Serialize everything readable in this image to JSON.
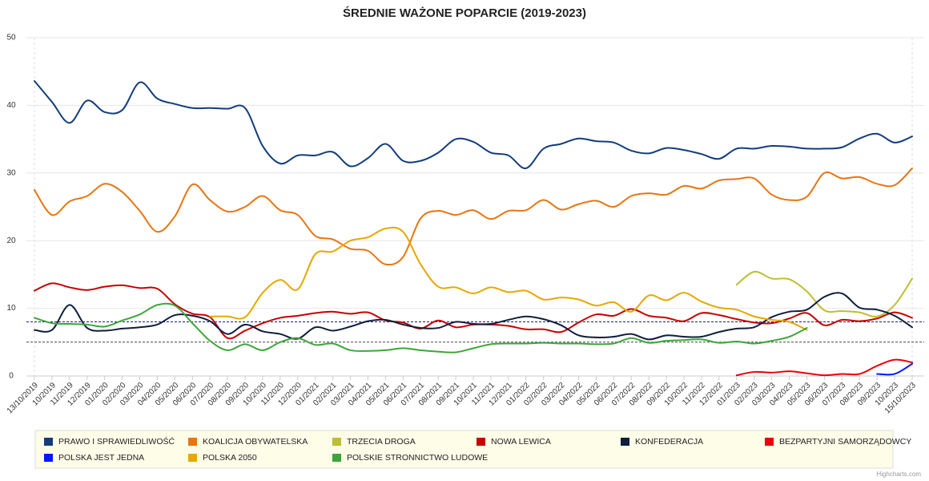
{
  "chart_data": {
    "type": "line",
    "title": "ŚREDNIE WAŻONE POPARCIE (2019-2023)",
    "credit": "Highcharts.com",
    "categories": [
      "13/10/2019",
      "10/2019",
      "11/2019",
      "12/2019",
      "01/2020",
      "02/2020",
      "03/2020",
      "04/2020",
      "05/2020",
      "06/2020",
      "07/2020",
      "08/2020",
      "09/2020",
      "10/2020",
      "11/2020",
      "12/2020",
      "01/2021",
      "02/2021",
      "03/2021",
      "04/2021",
      "05/2021",
      "06/2021",
      "07/2021",
      "08/2021",
      "09/2021",
      "10/2021",
      "11/2021",
      "12/2021",
      "01/2022",
      "02/2022",
      "03/2022",
      "04/2022",
      "05/2022",
      "06/2022",
      "07/2022",
      "08/2022",
      "09/2022",
      "10/2022",
      "11/2022",
      "12/2022",
      "01/2023",
      "02/2023",
      "03/2023",
      "04/2023",
      "05/2023",
      "06/2023",
      "07/2023",
      "08/2023",
      "09/2023",
      "10/2023",
      "15/10/2023"
    ],
    "ylim": [
      0,
      50
    ],
    "yticks": [
      0,
      10,
      20,
      30,
      40,
      50
    ],
    "grid": true,
    "threshold_lines": [
      {
        "value": 8,
        "color": "#1a1a80"
      },
      {
        "value": 5,
        "color": "#444444"
      }
    ],
    "series": [
      {
        "name": "PRAWO I SPRAWIEDLIWOŚĆ",
        "color": "#123d7a",
        "values": [
          43.6,
          40.5,
          37.4,
          40.7,
          39,
          39.3,
          43.4,
          41,
          40.2,
          39.6,
          39.6,
          39.5,
          39.6,
          34,
          31.4,
          32.6,
          32.6,
          33.1,
          31,
          32.2,
          34.3,
          31.8,
          31.8,
          33,
          35,
          34.6,
          33,
          32.6,
          30.7,
          33.6,
          34.3,
          35.1,
          34.7,
          34.5,
          33.3,
          32.9,
          33.7,
          33.4,
          32.8,
          32.1,
          33.6,
          33.6,
          34,
          33.9,
          33.6,
          33.6,
          33.8,
          35.1,
          35.8,
          34.5,
          35.4
        ]
      },
      {
        "name": "KOALICJA OBYWATELSKA",
        "color": "#e87511",
        "values": [
          27.5,
          23.8,
          25.8,
          26.6,
          28.4,
          27.2,
          24.4,
          21.3,
          23.6,
          28.3,
          26,
          24.3,
          25,
          26.6,
          24.5,
          23.8,
          20.7,
          20.2,
          18.8,
          18.5,
          16.5,
          17.6,
          23.3,
          24.4,
          23.8,
          24.5,
          23.2,
          24.4,
          24.5,
          26,
          24.6,
          25.4,
          25.9,
          25,
          26.6,
          27,
          26.8,
          28.1,
          27.7,
          28.9,
          29.1,
          29.2,
          26.8,
          26,
          26.5,
          30,
          29.2,
          29.4,
          28.4,
          28.2,
          30.7
        ]
      },
      {
        "name": "TRZECIA DROGA",
        "color": "#bdbe33",
        "values": [
          null,
          null,
          null,
          null,
          null,
          null,
          null,
          null,
          null,
          null,
          null,
          null,
          null,
          null,
          null,
          null,
          null,
          null,
          null,
          null,
          null,
          null,
          null,
          null,
          null,
          null,
          null,
          null,
          null,
          null,
          null,
          null,
          null,
          null,
          null,
          null,
          null,
          null,
          null,
          null,
          13.5,
          15.4,
          14.4,
          14.3,
          12.5,
          9.7,
          9.6,
          9.4,
          8.8,
          10.5,
          14.4
        ]
      },
      {
        "name": "NOWA LEWICA",
        "color": "#c80000",
        "values": [
          12.6,
          13.7,
          13.1,
          12.7,
          13.2,
          13.4,
          13,
          12.9,
          10.6,
          9.2,
          8.7,
          5.6,
          6.7,
          7.8,
          8.6,
          8.9,
          9.3,
          9.5,
          9.2,
          9.4,
          8.2,
          7.9,
          7,
          8.2,
          7.2,
          7.6,
          7.6,
          7.4,
          6.9,
          6.9,
          6.5,
          7.9,
          9.1,
          8.9,
          9.9,
          8.9,
          8.6,
          8.1,
          9.3,
          9,
          8.4,
          7.9,
          7.8,
          8.5,
          9.3,
          7.5,
          8.3,
          8.1,
          8.5,
          9.4,
          8.6
        ]
      },
      {
        "name": "KONFEDERACJA",
        "color": "#0f1e3c",
        "values": [
          6.8,
          6.8,
          10.5,
          7.1,
          6.7,
          7,
          7.2,
          7.6,
          9,
          8.9,
          8.1,
          6.2,
          7.6,
          6.6,
          6.2,
          5.5,
          7.2,
          6.7,
          7.3,
          8.1,
          8.3,
          7.6,
          7.1,
          7.1,
          8,
          7.7,
          7.7,
          8.3,
          8.8,
          8.4,
          7.5,
          6,
          5.7,
          5.8,
          6.2,
          5.4,
          6,
          5.8,
          5.8,
          6.5,
          7,
          7.2,
          8.7,
          9.5,
          9.8,
          11.7,
          12.2,
          10.1,
          9.8,
          8.9,
          7.2
        ]
      },
      {
        "name": "BEZPARTYJNI SAMORZĄDOWCY",
        "color": "#e8000b",
        "values": [
          null,
          null,
          null,
          null,
          null,
          null,
          null,
          null,
          null,
          null,
          null,
          null,
          null,
          null,
          null,
          null,
          null,
          null,
          null,
          null,
          null,
          null,
          null,
          null,
          null,
          null,
          null,
          null,
          null,
          null,
          null,
          null,
          null,
          null,
          null,
          null,
          null,
          null,
          null,
          null,
          0.1,
          0.6,
          0.5,
          0.7,
          0.4,
          0.1,
          0.3,
          0.3,
          1.5,
          2.4,
          2
        ]
      },
      {
        "name": "POLSKA JEST JEDNA",
        "color": "#0018ff",
        "values": [
          null,
          null,
          null,
          null,
          null,
          null,
          null,
          null,
          null,
          null,
          null,
          null,
          null,
          null,
          null,
          null,
          null,
          null,
          null,
          null,
          null,
          null,
          null,
          null,
          null,
          null,
          null,
          null,
          null,
          null,
          null,
          null,
          null,
          null,
          null,
          null,
          null,
          null,
          null,
          null,
          null,
          null,
          null,
          null,
          null,
          null,
          null,
          null,
          0.3,
          0.3,
          1.8
        ]
      },
      {
        "name": "POLSKA 2050",
        "color": "#e6a800",
        "values": [
          null,
          null,
          null,
          null,
          null,
          null,
          null,
          null,
          null,
          null,
          8.8,
          8.8,
          8.7,
          12.3,
          14.2,
          12.8,
          18,
          18.4,
          20,
          20.5,
          21.8,
          21.3,
          16.5,
          13.2,
          13.1,
          12.2,
          13.1,
          12.4,
          12.6,
          11.3,
          11.6,
          11.3,
          10.4,
          10.9,
          9.5,
          11.9,
          11.2,
          12.3,
          11,
          10.1,
          9.8,
          8.8,
          8.3,
          8,
          6.8,
          null,
          null,
          null,
          null,
          null,
          null
        ]
      },
      {
        "name": "POLSKIE STRONNICTWO LUDOWE",
        "color": "#3ea53a",
        "values": [
          8.6,
          7.8,
          7.7,
          7.6,
          7.3,
          8.2,
          9.1,
          10.5,
          10.4,
          7.8,
          5.2,
          3.8,
          4.7,
          3.8,
          5,
          5.6,
          4.6,
          4.8,
          3.8,
          3.7,
          3.8,
          4.1,
          3.8,
          3.6,
          3.5,
          4.1,
          4.7,
          4.8,
          4.8,
          4.9,
          4.8,
          4.8,
          4.7,
          4.8,
          5.6,
          4.9,
          5.2,
          5.3,
          5.4,
          4.9,
          5.1,
          4.8,
          5.2,
          5.8,
          7.1,
          null,
          null,
          null,
          null,
          null,
          null
        ]
      }
    ]
  }
}
